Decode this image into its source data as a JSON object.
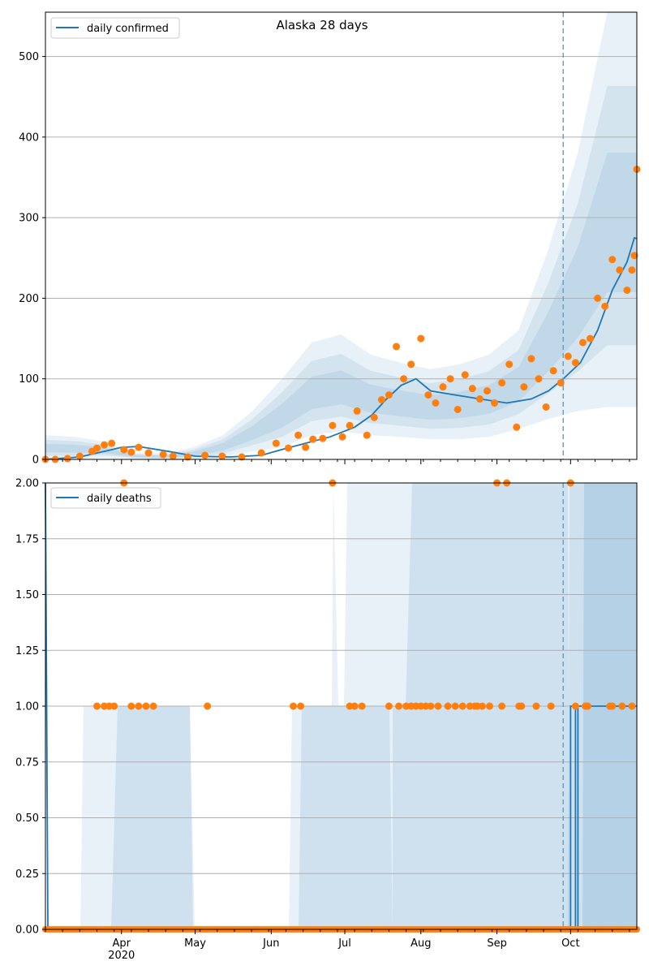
{
  "chart_data": [
    {
      "type": "line",
      "title": "Alaska 28 days",
      "legend": {
        "label": "daily confirmed",
        "placement": "top-left"
      },
      "ylim": [
        0,
        555
      ],
      "yticks": [
        0,
        100,
        200,
        300,
        400,
        500
      ],
      "ytick_labels": [
        "0",
        "100",
        "200",
        "300",
        "400",
        "500"
      ],
      "xlim": [
        "2020-03-01",
        "2020-10-28"
      ],
      "xticks": [
        "2020-04-01",
        "2020-05-01",
        "2020-06-01",
        "2020-07-01",
        "2020-08-01",
        "2020-09-01",
        "2020-10-01"
      ],
      "xtick_labels": [
        "",
        "",
        "",
        "",
        "",
        "",
        ""
      ],
      "grid": "horizontal",
      "forecast_start": "2020-09-28",
      "series": [
        {
          "name": "daily confirmed",
          "role": "fitted-line",
          "color": "#1f77b4",
          "x": [
            "2020-03-01",
            "2020-03-15",
            "2020-03-25",
            "2020-04-01",
            "2020-04-08",
            "2020-04-20",
            "2020-05-01",
            "2020-05-15",
            "2020-05-28",
            "2020-06-05",
            "2020-06-15",
            "2020-06-25",
            "2020-07-05",
            "2020-07-12",
            "2020-07-18",
            "2020-07-24",
            "2020-07-30",
            "2020-08-05",
            "2020-08-15",
            "2020-08-25",
            "2020-09-05",
            "2020-09-15",
            "2020-09-22",
            "2020-09-28",
            "2020-10-05",
            "2020-10-12",
            "2020-10-18",
            "2020-10-24",
            "2020-10-27",
            "2020-10-28"
          ],
          "values": [
            0,
            3,
            10,
            15,
            16,
            10,
            4,
            3,
            5,
            12,
            20,
            28,
            40,
            55,
            75,
            92,
            100,
            85,
            80,
            75,
            70,
            75,
            85,
            100,
            120,
            160,
            210,
            245,
            275,
            274
          ]
        },
        {
          "role": "observations",
          "color": "#ff7f0e",
          "x": [
            "2020-03-01",
            "2020-03-05",
            "2020-03-10",
            "2020-03-15",
            "2020-03-20",
            "2020-03-22",
            "2020-03-25",
            "2020-03-28",
            "2020-04-02",
            "2020-04-05",
            "2020-04-08",
            "2020-04-12",
            "2020-04-18",
            "2020-04-22",
            "2020-04-28",
            "2020-05-05",
            "2020-05-12",
            "2020-05-20",
            "2020-05-28",
            "2020-06-03",
            "2020-06-08",
            "2020-06-12",
            "2020-06-15",
            "2020-06-18",
            "2020-06-22",
            "2020-06-26",
            "2020-06-30",
            "2020-07-03",
            "2020-07-06",
            "2020-07-10",
            "2020-07-13",
            "2020-07-16",
            "2020-07-19",
            "2020-07-22",
            "2020-07-25",
            "2020-07-28",
            "2020-08-01",
            "2020-08-04",
            "2020-08-07",
            "2020-08-10",
            "2020-08-13",
            "2020-08-16",
            "2020-08-19",
            "2020-08-22",
            "2020-08-25",
            "2020-08-28",
            "2020-08-31",
            "2020-09-03",
            "2020-09-06",
            "2020-09-09",
            "2020-09-12",
            "2020-09-15",
            "2020-09-18",
            "2020-09-21",
            "2020-09-24",
            "2020-09-27",
            "2020-09-30",
            "2020-10-03",
            "2020-10-06",
            "2020-10-09",
            "2020-10-12",
            "2020-10-15",
            "2020-10-18",
            "2020-10-21",
            "2020-10-24",
            "2020-10-26",
            "2020-10-27",
            "2020-10-28"
          ],
          "values": [
            0,
            0,
            1,
            4,
            10,
            14,
            18,
            20,
            12,
            9,
            15,
            8,
            6,
            4,
            3,
            5,
            4,
            3,
            8,
            20,
            14,
            30,
            15,
            25,
            26,
            42,
            28,
            42,
            60,
            30,
            52,
            74,
            80,
            140,
            100,
            118,
            150,
            80,
            70,
            90,
            100,
            62,
            105,
            88,
            75,
            85,
            70,
            95,
            118,
            40,
            90,
            125,
            100,
            65,
            110,
            95,
            128,
            120,
            145,
            150,
            200,
            190,
            248,
            235,
            210,
            235,
            253,
            360
          ]
        }
      ],
      "band_upper_outer": [
        30,
        28,
        22,
        8,
        7,
        15,
        30,
        60,
        100,
        145,
        155,
        130,
        120,
        112,
        118,
        130,
        160,
        260,
        380,
        560,
        560
      ],
      "band_lower_outer": [
        0,
        0,
        2,
        1,
        0,
        0,
        3,
        10,
        15,
        30,
        35,
        30,
        28,
        25,
        25,
        28,
        38,
        50,
        60,
        65,
        65
      ]
    },
    {
      "type": "line",
      "title": "",
      "legend": {
        "label": "daily deaths",
        "placement": "top-left"
      },
      "ylim": [
        0,
        2
      ],
      "yticks": [
        0,
        0.25,
        0.5,
        0.75,
        1,
        1.25,
        1.5,
        1.75,
        2
      ],
      "ytick_labels": [
        "0.00",
        "0.25",
        "0.50",
        "0.75",
        "1.00",
        "1.25",
        "1.50",
        "1.75",
        "2.00"
      ],
      "xlim": [
        "2020-03-01",
        "2020-10-28"
      ],
      "xticks": [
        "2020-04-01",
        "2020-05-01",
        "2020-06-01",
        "2020-07-01",
        "2020-08-01",
        "2020-09-01",
        "2020-10-01"
      ],
      "xtick_labels": [
        "Apr\n2020",
        "May",
        "Jun",
        "Jul",
        "Aug",
        "Sep",
        "Oct"
      ],
      "grid": "horizontal",
      "forecast_start": "2020-09-28",
      "series": [
        {
          "name": "daily deaths",
          "role": "fitted-line",
          "color": "#1f77b4",
          "x": [
            "2020-03-01",
            "2020-03-02",
            "2020-10-01",
            "2020-10-01",
            "2020-10-03",
            "2020-10-03",
            "2020-10-04",
            "2020-10-04",
            "2020-10-28"
          ],
          "values": [
            2,
            0,
            0,
            1,
            1,
            0,
            0,
            1,
            1
          ]
        },
        {
          "role": "observations-ones",
          "color": "#ff7f0e",
          "x": [
            "2020-03-22",
            "2020-03-25",
            "2020-03-27",
            "2020-03-29",
            "2020-04-05",
            "2020-04-08",
            "2020-04-11",
            "2020-04-14",
            "2020-05-06",
            "2020-06-10",
            "2020-06-13",
            "2020-07-03",
            "2020-07-05",
            "2020-07-08",
            "2020-07-19",
            "2020-07-23",
            "2020-07-26",
            "2020-07-28",
            "2020-07-30",
            "2020-08-01",
            "2020-08-03",
            "2020-08-05",
            "2020-08-08",
            "2020-08-12",
            "2020-08-15",
            "2020-08-18",
            "2020-08-21",
            "2020-08-23",
            "2020-08-24",
            "2020-08-26",
            "2020-08-29",
            "2020-09-03",
            "2020-09-10",
            "2020-09-11",
            "2020-09-17",
            "2020-09-23",
            "2020-10-03",
            "2020-10-07",
            "2020-10-08",
            "2020-10-17",
            "2020-10-18",
            "2020-10-22",
            "2020-10-26"
          ],
          "values": [
            1,
            1,
            1,
            1,
            1,
            1,
            1,
            1,
            1,
            1,
            1,
            1,
            1,
            1,
            1,
            1,
            1,
            1,
            1,
            1,
            1,
            1,
            1,
            1,
            1,
            1,
            1,
            1,
            1,
            1,
            1,
            1,
            1,
            1,
            1,
            1,
            1,
            1,
            1,
            1,
            1,
            1,
            1
          ]
        },
        {
          "role": "observations-twos",
          "color": "#ff7f0e",
          "x": [
            "2020-04-02",
            "2020-06-26",
            "2020-09-01",
            "2020-09-05",
            "2020-10-01"
          ],
          "values": [
            2,
            2,
            2,
            2,
            2
          ]
        }
      ]
    }
  ]
}
